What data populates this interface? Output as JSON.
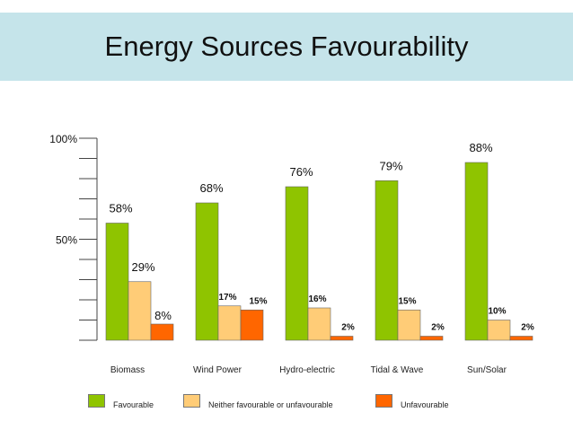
{
  "title": "Energy Sources Favourability",
  "colors": {
    "favourable": "#8fc400",
    "neutral": "#ffcc77",
    "unfavourable": "#ff6600",
    "banner": "#c5e4ea"
  },
  "legend": {
    "favourable": "Favourable",
    "neutral": "Neither favourable or unfavourable",
    "unfavourable": "Unfavourable"
  },
  "chart_data": {
    "type": "bar",
    "title": "Energy Sources Favourability",
    "categories": [
      "Biomass",
      "Wind Power",
      "Hydro-electric",
      "Tidal & Wave",
      "Sun/Solar"
    ],
    "series": [
      {
        "name": "Favourable",
        "values": [
          58,
          68,
          76,
          79,
          88
        ],
        "labels": [
          "58%",
          "68%",
          "76%",
          "79%",
          "88%"
        ]
      },
      {
        "name": "Neither favourable or unfavourable",
        "values": [
          29,
          17,
          16,
          15,
          10
        ],
        "labels": [
          "29%",
          "17%",
          "16%",
          "15%",
          "10%"
        ]
      },
      {
        "name": "Unfavourable",
        "values": [
          8,
          15,
          2,
          2,
          2
        ],
        "labels": [
          "8%",
          "15%",
          "2%",
          "2%",
          "2%"
        ]
      }
    ],
    "ylim": [
      0,
      100
    ],
    "yticks": [
      {
        "value": 100,
        "label": "100%"
      },
      {
        "value": 50,
        "label": "50%"
      }
    ],
    "legend_position": "bottom"
  }
}
